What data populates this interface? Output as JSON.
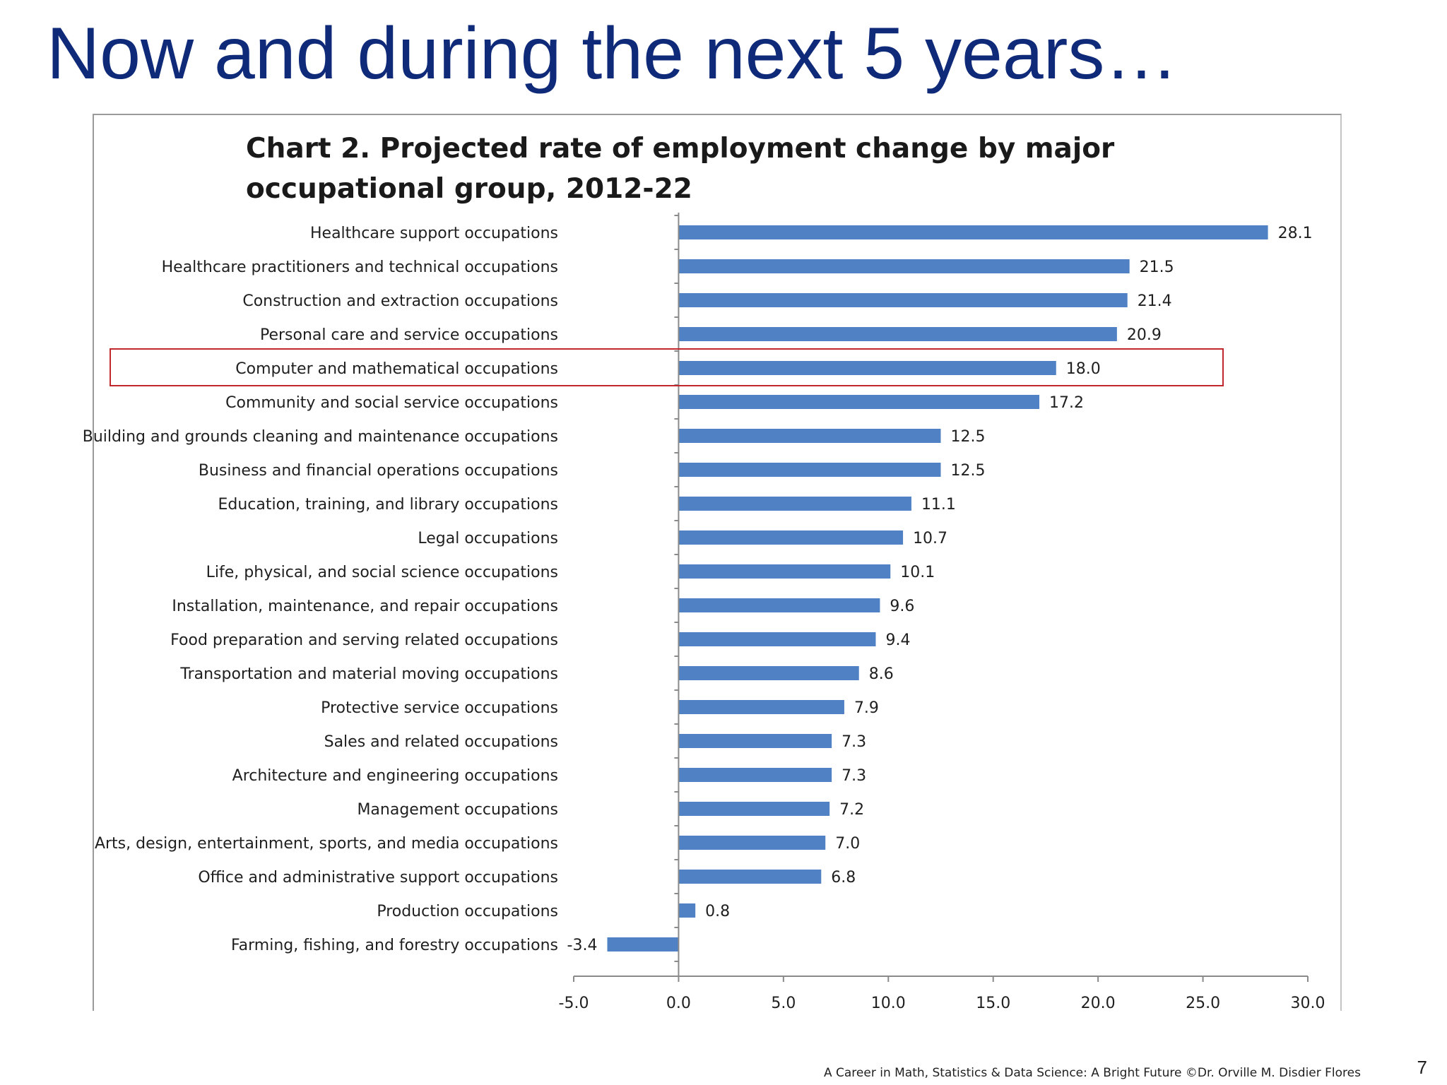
{
  "slide": {
    "title": "Now and during the next 5 years…",
    "footer": "A Career in Math, Statistics & Data Science: A Bright Future ©Dr. Orville M. Disdier Flores",
    "page_number": "7"
  },
  "colors": {
    "bar": "#4f81c4",
    "highlight_box": "#c0282d",
    "title": "#0f2a78"
  },
  "chart_data": {
    "type": "bar",
    "orientation": "horizontal",
    "title": "Chart 2. Projected rate of employment change by major occupational group, 2012-22",
    "xlabel": "",
    "ylabel": "",
    "xlim": [
      -5.0,
      30.0
    ],
    "x_ticks": [
      "-5.0",
      "0.0",
      "5.0",
      "10.0",
      "15.0",
      "20.0",
      "25.0",
      "30.0"
    ],
    "highlighted_category": "Computer and mathematical occupations",
    "categories": [
      "Healthcare support occupations",
      "Healthcare practitioners and technical occupations",
      "Construction and extraction occupations",
      "Personal care and service occupations",
      "Computer and mathematical occupations",
      "Community and social service occupations",
      "Building and grounds cleaning and maintenance occupations",
      "Business and financial operations occupations",
      "Education, training, and library occupations",
      "Legal occupations",
      "Life, physical, and social science occupations",
      "Installation, maintenance, and repair occupations",
      "Food preparation and serving related occupations",
      "Transportation and material moving occupations",
      "Protective service occupations",
      "Sales and related occupations",
      "Architecture and engineering occupations",
      "Management occupations",
      "Arts, design, entertainment, sports, and media occupations",
      "Office and administrative support occupations",
      "Production occupations",
      "Farming, fishing, and forestry occupations"
    ],
    "values": [
      28.1,
      21.5,
      21.4,
      20.9,
      18.0,
      17.2,
      12.5,
      12.5,
      11.1,
      10.7,
      10.1,
      9.6,
      9.4,
      8.6,
      7.9,
      7.3,
      7.3,
      7.2,
      7.0,
      6.8,
      0.8,
      -3.4
    ],
    "value_labels": [
      "28.1",
      "21.5",
      "21.4",
      "20.9",
      "18.0",
      "17.2",
      "12.5",
      "12.5",
      "11.1",
      "10.7",
      "10.1",
      "9.6",
      "9.4",
      "8.6",
      "7.9",
      "7.3",
      "7.3",
      "7.2",
      "7.0",
      "6.8",
      "0.8",
      "-3.4"
    ]
  }
}
